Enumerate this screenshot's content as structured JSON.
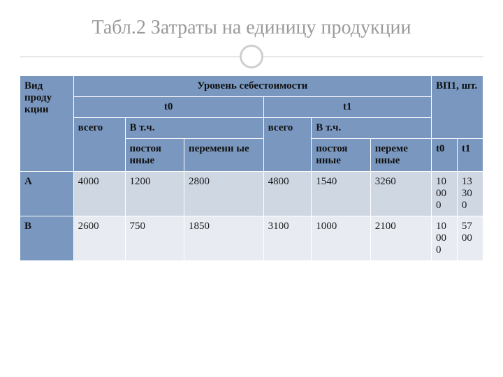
{
  "title": "Табл.2  Затраты на единицу продукции",
  "table": {
    "head": {
      "kind": "Вид проду кции",
      "level": "Уровень себестоимости",
      "vp": "ВП1, шт.",
      "t0": "t0",
      "t1": "t1",
      "total": "всего",
      "incl": "В т.ч.",
      "const": "постоя нные",
      "var0": "переменн ые",
      "var1": "переме нные",
      "vp_t0": "t0",
      "vp_t1": "t1"
    },
    "rows": [
      {
        "label": "А",
        "total0": "4000",
        "const0": "1200",
        "var0": "2800",
        "total1": "4800",
        "const1": "1540",
        "var1": "3260",
        "vp0": "10 00 0",
        "vp1": "13 30 0"
      },
      {
        "label": "В",
        "total0": "2600",
        "const0": "750",
        "var0": "1850",
        "total1": "3100",
        "const1": "1000",
        "var1": "2100",
        "vp0": "10  00 0",
        "vp1": "57 00"
      }
    ]
  },
  "colors": {
    "header_bg": "#7a98bf",
    "band_a": "#cfd7e3",
    "band_b": "#e8ecf2",
    "title_color": "#9a9a9a",
    "rule_color": "#c9c9c9"
  }
}
